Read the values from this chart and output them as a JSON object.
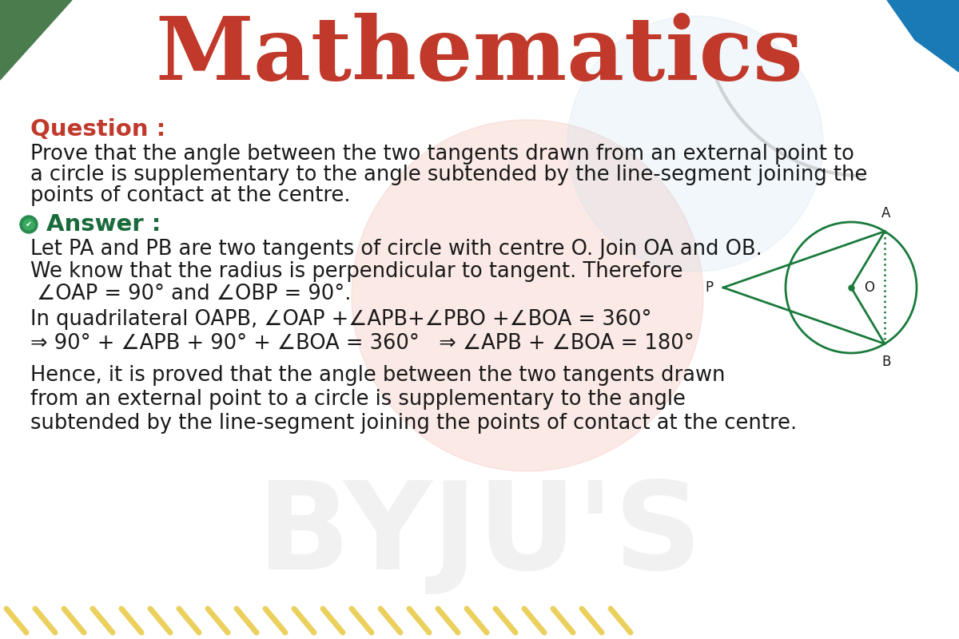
{
  "title": "Mathematics",
  "title_color": "#C0392B",
  "bg_color": "#FFFFFF",
  "question_label": "Question :",
  "question_label_color": "#C0392B",
  "question_text_line1": "Prove that the angle between the two tangents drawn from an external point to",
  "question_text_line2": "a circle is supplementary to the angle subtended by the line-segment joining the",
  "question_text_line3": "points of contact at the centre.",
  "answer_label": "Answer :",
  "answer_label_color": "#1a6b3c",
  "answer_line1": "Let PA and PB are two tangents of circle with centre O. Join OA and OB.",
  "answer_line2": "We know that the radius is perpendicular to tangent. Therefore",
  "answer_line3": " ∠OAP = 90° and ∠OBP = 90°.",
  "answer_line4": "In quadrilateral OAPB, ∠OAP +∠APB+∠PBO +∠BOA = 360°",
  "answer_line5": "⇒ 90° + ∠APB + 90° + ∠BOA = 360°   ⇒ ∠APB + ∠BOA = 180°",
  "answer_line6": "Hence, it is proved that the angle between the two tangents drawn",
  "answer_line7": "from an external point to a circle is supplementary to the angle",
  "answer_line8": "subtended by the line-segment joining the points of contact at the centre.",
  "text_color": "#1a1a1a",
  "diagram_color": "#1a7a3c",
  "corner_green_color": "#4a7c4e",
  "corner_blue_color": "#1a7ab5",
  "corner_yellow_color": "#e8b820",
  "stripe_color": "#e8c840",
  "bg_circle_color": "#f5c8c0",
  "bg_circle2_color": "#c8e0f0",
  "gray_arc_color": "#bbbbbb"
}
